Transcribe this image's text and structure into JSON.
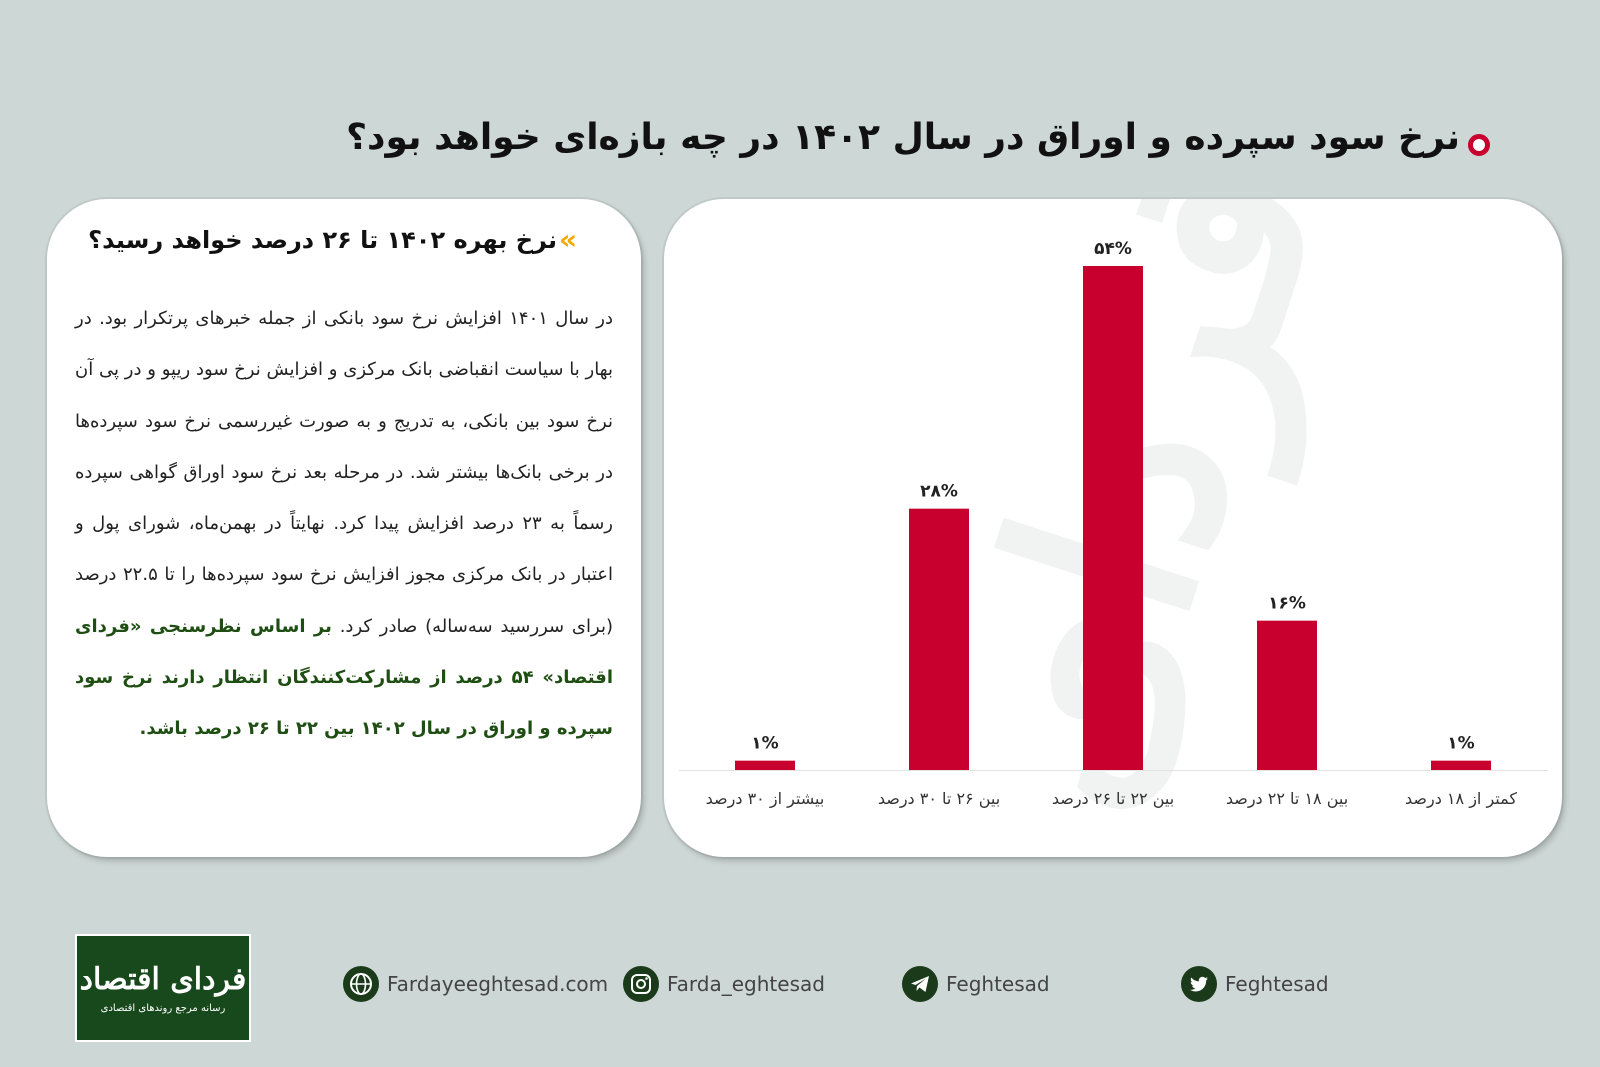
{
  "header": {
    "title": "نرخ سود سپرده و اوراق در سال ۱۴۰۲ در چه بازه‌ای خواهد بود؟",
    "bullet_color": "#c8002d"
  },
  "text_card": {
    "heading": "نرخ بهره ۱۴۰۲ تا ۲۶ درصد خواهد رسید؟",
    "chevron_color": "#f2a900",
    "paragraph": "در سال ۱۴۰۱ افزایش نرخ سود بانکی از جمله خبرهای پرتکرار بود. در بهار با سیاست انقباضی بانک مرکزی و افزایش نرخ سود ریپو و در پی آن نرخ سود بین بانکی، به تدریج و به صورت غیررسمی نرخ سود سپرده‌ها در برخی بانک‌ها بیشتر شد. در مرحله بعد نرخ سود اوراق گواهی سپرده رسماً به ۲۳ درصد افزایش پیدا کرد. نهایتاً در بهمن‌ماه، شورای پول و اعتبار در بانک مرکزی مجوز افزایش نرخ سود سپرده‌ها را تا ۲۲.۵ درصد (برای سررسید سه‌ساله) صادر کرد.",
    "highlight": "بر اساس نظرسنجی «فردای اقتصاد» ۵۴ درصد از مشارکت‌کنندگان انتظار دارند نرخ سود سپرده و اوراق در سال ۱۴۰۲ بین ۲۲ تا ۲۶ درصد باشد.",
    "highlight_color": "#1f4e13"
  },
  "chart_data": {
    "type": "bar",
    "categories": [
      "کمتر از ۱۸ درصد",
      "بین ۱۸ تا ۲۲ درصد",
      "بین ۲۲ تا ۲۶ درصد",
      "بین ۲۶ تا ۳۰ درصد",
      "بیشتر از ۳۰ درصد"
    ],
    "values": [
      1,
      16,
      54,
      28,
      1
    ],
    "data_labels": [
      "۱%",
      "۱۶%",
      "۵۴%",
      "۲۸%",
      "۱%"
    ],
    "ylim": [
      0,
      54
    ],
    "bar_color": "#c8002d",
    "grid": false,
    "title": "",
    "xlabel": "",
    "ylabel": ""
  },
  "watermark": "فردای اقتصاد",
  "footer": {
    "website": "Fardayeeghtesad.com",
    "instagram": "Farda_eghtesad",
    "telegram": "Feghtesad",
    "twitter": "Feghtesad",
    "logo_title": "فردای اقتصاد",
    "logo_subtitle": "رسانه مرجع روندهای اقتصادی",
    "icon_color": "#1b3a1a"
  }
}
